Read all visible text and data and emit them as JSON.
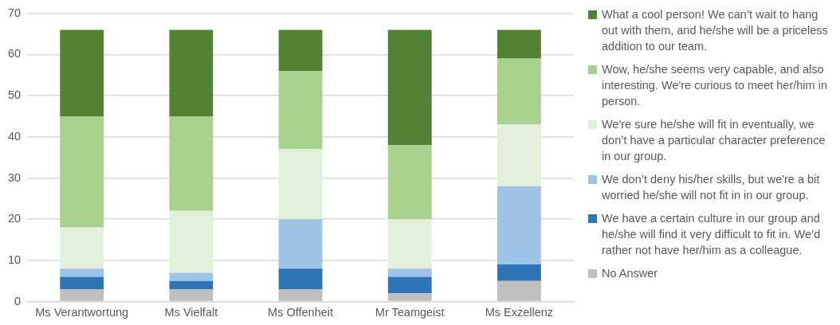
{
  "chart_data": {
    "type": "bar",
    "stacked": true,
    "categories": [
      "Ms Verantwortung",
      "Ms Vielfalt",
      "Ms Offenheit",
      "Mr Teamgeist",
      "Ms Exzellenz"
    ],
    "ylim": [
      0,
      70
    ],
    "yticks": [
      0,
      10,
      20,
      30,
      40,
      50,
      60,
      70
    ],
    "grid": "y",
    "legend": "right",
    "series": [
      {
        "name": "No Answer",
        "color": "#bfbfbf",
        "values": [
          3,
          3,
          3,
          2,
          5
        ]
      },
      {
        "name": "We have a certain culture in our group and he/she will find it very difficult to fit in. We’d rather not have her/him as a colleague.",
        "color": "#2e75b6",
        "values": [
          3,
          2,
          5,
          4,
          4
        ]
      },
      {
        "name": "We don’t deny his/her skills, but we're a bit worried he/she will not fit in in our group.",
        "color": "#9dc3e6",
        "values": [
          2,
          2,
          12,
          2,
          19
        ]
      },
      {
        "name": "We're sure he/she will fit in eventually, we don’t have a particular character preference in our group.",
        "color": "#e2efda",
        "values": [
          10,
          15,
          17,
          12,
          15
        ]
      },
      {
        "name": "Wow, he/she seems very capable, and also interesting. We're curious to meet her/him in person.",
        "color": "#a9d18e",
        "values": [
          27,
          23,
          19,
          18,
          16
        ]
      },
      {
        "name": "What a cool person! We can’t wait to hang out with them, and he/she will be a priceless addition to our team.",
        "color": "#548235",
        "values": [
          21,
          21,
          10,
          28,
          7
        ]
      }
    ]
  }
}
